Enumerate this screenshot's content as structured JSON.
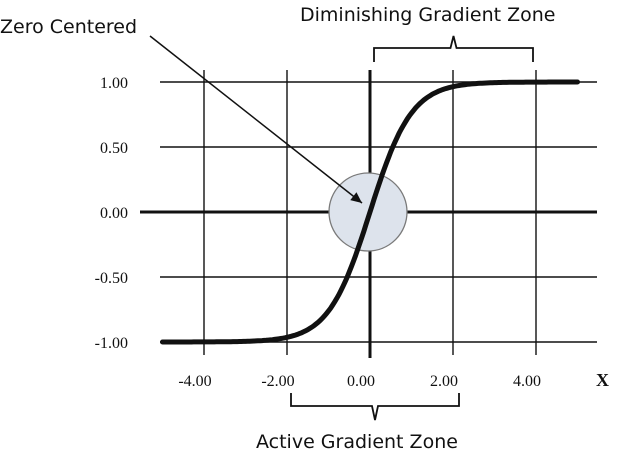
{
  "chart_data": {
    "type": "line",
    "function": "tanh",
    "xlabel": "X",
    "ylabel": "",
    "xlim": [
      -5,
      5
    ],
    "ylim": [
      -1,
      1
    ],
    "grid": true,
    "x_ticks": [
      -4,
      -2,
      0,
      2,
      4
    ],
    "y_ticks": [
      1,
      0.5,
      0,
      -0.5,
      -1
    ],
    "x_tick_labels": [
      "-4.00",
      "-2.00",
      "0.00",
      "2.00",
      "4.00"
    ],
    "y_tick_labels": [
      "1.00",
      "0.50",
      "0.00",
      "-0.50",
      "-1.00"
    ],
    "series": [
      {
        "x": [
          -5,
          -4.5,
          -4,
          -3.5,
          -3,
          -2.5,
          -2,
          -1.75,
          -1.5,
          -1.25,
          -1,
          -0.75,
          -0.5,
          -0.25,
          0,
          0.25,
          0.5,
          0.75,
          1,
          1.25,
          1.5,
          1.75,
          2,
          2.5,
          3,
          3.5,
          4,
          4.5,
          5
        ],
        "y": [
          -1.0,
          -1.0,
          -0.999,
          -0.998,
          -0.995,
          -0.987,
          -0.964,
          -0.941,
          -0.905,
          -0.848,
          -0.762,
          -0.635,
          -0.462,
          -0.245,
          0,
          0.245,
          0.462,
          0.635,
          0.762,
          0.848,
          0.905,
          0.941,
          0.964,
          0.987,
          0.995,
          0.998,
          0.999,
          1.0,
          1.0
        ]
      }
    ],
    "annotations": {
      "zero_centered": {
        "text": "Zero Centered",
        "points_to": [
          0,
          0
        ]
      },
      "diminishing_zone": {
        "text": "Diminishing Gradient Zone",
        "x_range": [
          0,
          4
        ]
      },
      "active_zone": {
        "text": "Active Gradient Zone",
        "x_range": [
          -2,
          2
        ]
      }
    }
  },
  "colors": {
    "curve": "#111111",
    "grid": "#111111",
    "highlight_fill": "#dde3ec",
    "highlight_stroke": "#7a7a7a"
  }
}
